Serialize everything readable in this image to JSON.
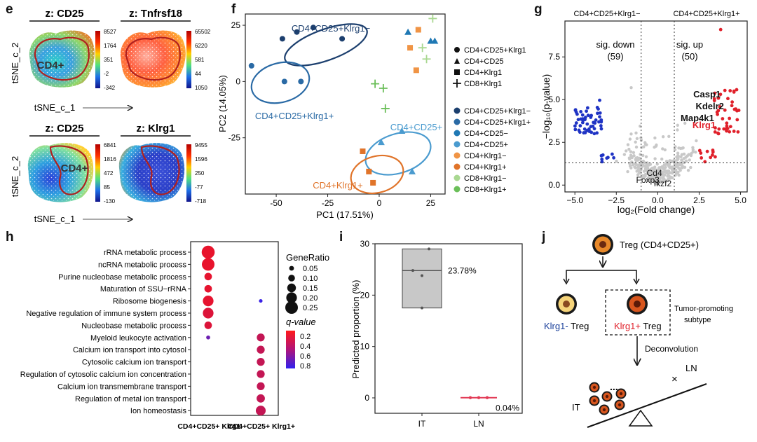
{
  "panel_e": {
    "letter": "e",
    "maps": [
      {
        "title": "z: CD25",
        "ticks": [
          "8527",
          "1764",
          "351",
          "-2",
          "-342"
        ],
        "cluster_label": "CD4+"
      },
      {
        "title": "z: Tnfrsf18",
        "ticks": [
          "65502",
          "6220",
          "581",
          "44",
          "1050"
        ],
        "cluster_label": ""
      },
      {
        "title": "z: CD25",
        "ticks": [
          "6841",
          "1816",
          "472",
          "85",
          "-130"
        ],
        "cluster_label": "CD4+"
      },
      {
        "title": "z: Klrg1",
        "ticks": [
          "9455",
          "1596",
          "250",
          "-77",
          "-718"
        ],
        "cluster_label": ""
      }
    ],
    "xlabel": "tSNE_c_1",
    "ylabel": "tSNE_c_2"
  },
  "panel_f": {
    "letter": "f",
    "chart_data": {
      "type": "scatter",
      "xlabel": "PC1 (17.51%)",
      "ylabel": "PC2 (14.05%)",
      "xlim": [
        -65,
        32
      ],
      "ylim": [
        -50,
        30
      ],
      "xticks": [
        -50,
        -25,
        0,
        25
      ],
      "yticks": [
        -25,
        0,
        25
      ],
      "grid": false,
      "shape_legend": [
        "CD4+CD25+Klrg1",
        "CD4+CD25",
        "CD4+Klrg1",
        "CD8+Klrg1"
      ],
      "series": [
        {
          "name": "CD4+CD25+Klrg1−",
          "color": "#1c3f6e",
          "shape": "circle",
          "points": [
            [
              -47,
              19
            ],
            [
              -40,
              22
            ],
            [
              -32,
              24
            ],
            [
              -18,
              19
            ]
          ]
        },
        {
          "name": "CD4+CD25+Klrg1+",
          "color": "#2a6aa5",
          "shape": "circle",
          "points": [
            [
              -62,
              7
            ],
            [
              -46,
              0
            ],
            [
              -38,
              0
            ]
          ]
        },
        {
          "name": "CD4+CD25−",
          "color": "#1f78b4",
          "shape": "triangle",
          "points": [
            [
              14,
              22
            ],
            [
              25,
              18
            ],
            [
              27,
              18
            ]
          ]
        },
        {
          "name": "CD4+CD25+",
          "color": "#4a9bcf",
          "shape": "triangle",
          "points": [
            [
              1,
              -27
            ],
            [
              11,
              -22
            ],
            [
              16,
              -40
            ]
          ]
        },
        {
          "name": "CD4+Klrg1−",
          "color": "#f09445",
          "shape": "square",
          "points": [
            [
              15,
              15
            ],
            [
              18,
              5
            ],
            [
              19,
              23
            ]
          ]
        },
        {
          "name": "CD4+Klrg1+",
          "color": "#e0742a",
          "shape": "square",
          "points": [
            [
              -8,
              -31
            ],
            [
              -5,
              -40
            ],
            [
              -3,
              -45
            ]
          ]
        },
        {
          "name": "CD8+Klrg1−",
          "color": "#a9d891",
          "shape": "cross",
          "points": [
            [
              21,
              15
            ],
            [
              23,
              10
            ],
            [
              26,
              28
            ]
          ]
        },
        {
          "name": "CD8+Klrg1+",
          "color": "#6bbf59",
          "shape": "cross",
          "points": [
            [
              -2,
              -1
            ],
            [
              2,
              -3
            ],
            [
              3,
              -12
            ]
          ]
        }
      ],
      "annotations": [
        {
          "text": "CD4+CD25+Klrg1−",
          "color": "#1c3f6e"
        },
        {
          "text": "CD4+CD25+Klrg1+",
          "color": "#2a6aa5"
        },
        {
          "text": "CD4+CD25+",
          "color": "#4a9bcf"
        },
        {
          "text": "CD4+Klrg1+",
          "color": "#e0742a"
        }
      ]
    }
  },
  "panel_g": {
    "letter": "g",
    "chart_data": {
      "type": "scatter",
      "xlabel": "log₂(Fold change)",
      "ylabel": "−log₁₀(p-value)",
      "xlim": [
        -5.6,
        5.4
      ],
      "ylim": [
        -0.4,
        9.6
      ],
      "xticks": [
        -5.0,
        -2.5,
        0.0,
        2.5,
        5.0
      ],
      "yticks": [
        0.0,
        2.5,
        5.0,
        7.5
      ],
      "xtick_labels": [
        "−5.0",
        "−2.5",
        "0.0",
        "2.5",
        "5.0"
      ],
      "ytick_labels": [
        "0.0",
        "2.5",
        "5.0",
        "7.5"
      ],
      "thresholds": {
        "x": [
          -1,
          1
        ],
        "y": 1.3
      },
      "header_left": "CD4+CD25+Klrg1−",
      "header_right": "CD4+CD25+Klrg1+",
      "sig_down_label": "sig. down",
      "sig_down_count": "(59)",
      "sig_up_label": "sig. up",
      "sig_up_count": "(50)",
      "colors": {
        "down": "#1f33c4",
        "up": "#e0202a",
        "ns": "#c8c8c8"
      },
      "gene_labels": [
        {
          "text": "Casp1",
          "x": 3.8,
          "y": 5.3,
          "color": "#111111"
        },
        {
          "text": "Kdelr2",
          "x": 4.0,
          "y": 4.6,
          "color": "#111111"
        },
        {
          "text": "Map4k1",
          "x": 3.4,
          "y": 3.9,
          "color": "#111111"
        },
        {
          "text": "Klrg1",
          "x": 3.5,
          "y": 3.5,
          "color": "#e0202a"
        },
        {
          "text": "Cd4",
          "x": -0.2,
          "y": 0.7,
          "color": "#111111"
        },
        {
          "text": "Foxp3",
          "x": -0.6,
          "y": 0.3,
          "color": "#111111"
        },
        {
          "text": "Ikzf2",
          "x": 0.3,
          "y": 0.1,
          "color": "#111111"
        }
      ]
    }
  },
  "panel_h": {
    "letter": "h",
    "chart_data": {
      "type": "scatter",
      "categories": [
        "CD4+CD25+ Klrg1-",
        "CD4+CD25+ Klrg1+"
      ],
      "terms": [
        "rRNA metabolic process",
        "ncRNA metabolic process",
        "Purine nucleobase metabolic process",
        "Maturation of SSU−rRNA",
        "Ribosome biogenesis",
        "Negative regulation of  immune system process",
        "Nucleobase metabolic process",
        "Myeloid leukocyte activation",
        "Calcium ion transport into cytosol",
        "Cytosolic calcium ion transport",
        "Regulation of cytosolic calcium ion concentration",
        "Calcium ion transmembrane transport",
        "Regulation of metal ion transport",
        "Ion homeostasis"
      ],
      "points": [
        {
          "term": 0,
          "group": 0,
          "gene_ratio": 0.26,
          "q": 0.15
        },
        {
          "term": 1,
          "group": 0,
          "gene_ratio": 0.25,
          "q": 0.15
        },
        {
          "term": 2,
          "group": 0,
          "gene_ratio": 0.12,
          "q": 0.16
        },
        {
          "term": 3,
          "group": 0,
          "gene_ratio": 0.12,
          "q": 0.16
        },
        {
          "term": 4,
          "group": 0,
          "gene_ratio": 0.2,
          "q": 0.16
        },
        {
          "term": 5,
          "group": 0,
          "gene_ratio": 0.2,
          "q": 0.2
        },
        {
          "term": 6,
          "group": 0,
          "gene_ratio": 0.12,
          "q": 0.2
        },
        {
          "term": 7,
          "group": 0,
          "gene_ratio": 0.03,
          "q": 0.65
        },
        {
          "term": 4,
          "group": 1,
          "gene_ratio": 0.02,
          "q": 0.85
        },
        {
          "term": 7,
          "group": 1,
          "gene_ratio": 0.13,
          "q": 0.3
        },
        {
          "term": 8,
          "group": 1,
          "gene_ratio": 0.13,
          "q": 0.3
        },
        {
          "term": 9,
          "group": 1,
          "gene_ratio": 0.13,
          "q": 0.3
        },
        {
          "term": 10,
          "group": 1,
          "gene_ratio": 0.13,
          "q": 0.3
        },
        {
          "term": 11,
          "group": 1,
          "gene_ratio": 0.13,
          "q": 0.3
        },
        {
          "term": 12,
          "group": 1,
          "gene_ratio": 0.14,
          "q": 0.3
        },
        {
          "term": 13,
          "group": 1,
          "gene_ratio": 0.18,
          "q": 0.3
        }
      ],
      "size_legend_title": "GeneRatio",
      "size_legend_values": [
        0.05,
        0.1,
        0.15,
        0.2,
        0.25
      ],
      "size_legend_labels": [
        "0.05",
        "0.10",
        "0.15",
        "0.20",
        "0.25"
      ],
      "color_legend_title": "q-value",
      "color_legend_ticks": [
        "0.2",
        "0.4",
        "0.6",
        "0.8"
      ],
      "colors": {
        "low_q": "#e8132c",
        "high_q": "#3b23e6"
      }
    }
  },
  "panel_i": {
    "letter": "i",
    "chart_data": {
      "type": "bar",
      "categories": [
        "IT",
        "LN"
      ],
      "ylabel": "Predicted proportion (%)",
      "ylim": [
        -3,
        30
      ],
      "yticks": [
        0,
        10,
        20,
        30
      ],
      "boxes": [
        {
          "category": "IT",
          "min": 17.5,
          "q1": 17.5,
          "median": 24.78,
          "q3": 29.0,
          "max": 29.0,
          "points": [
            29.0,
            24.8,
            23.8,
            17.5
          ],
          "label": "23.78%"
        },
        {
          "category": "LN",
          "min": 0.0,
          "q1": 0.0,
          "median": 0.04,
          "q3": 0.1,
          "max": 0.1,
          "points": [
            0.0,
            0.04,
            0.08
          ],
          "label": "0.04%"
        }
      ],
      "colors": {
        "box": "#c8c8c8",
        "ln": "#e23a55"
      }
    }
  },
  "panel_j": {
    "letter": "j",
    "top_label": "Treg (CD4+CD25+)",
    "left_prefix": "Klrg1-",
    "left_suffix": " Treg",
    "right_prefix": "Klrg1+",
    "right_suffix": " Treg",
    "side_note_line1": "Tumor-promoting",
    "side_note_line2": "subtype",
    "step_label": "Deconvolution",
    "it_label": "IT",
    "ln_label": "LN",
    "ellipsis": "...",
    "cross": "×",
    "colors": {
      "klrg1_minus": "#1a3f9a",
      "klrg1_plus": "#e0202a",
      "treg_orange": "#e8892a"
    }
  }
}
